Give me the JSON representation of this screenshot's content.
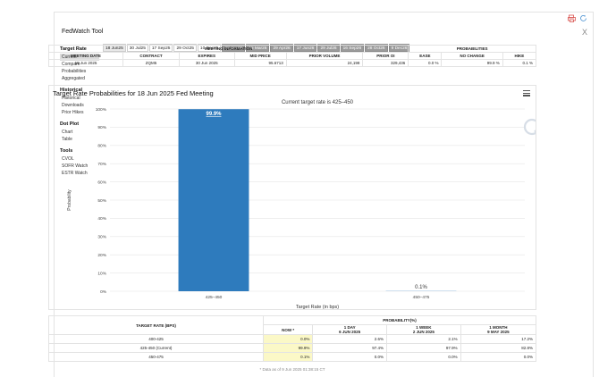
{
  "app": {
    "title": "FedWatch Tool"
  },
  "sidebar": {
    "sections": [
      {
        "heading": "Target Rate",
        "items": [
          "Current",
          "Compare",
          "Probabilities",
          "Aggregated"
        ]
      },
      {
        "heading": "Historical",
        "items": [
          "Historical",
          "Downloads",
          "Prior Hikes"
        ]
      },
      {
        "heading": "Dot Plot",
        "items": [
          "Chart",
          "Table"
        ]
      },
      {
        "heading": "Tools",
        "items": [
          "CVOL",
          "SOFR Watch",
          "ESTR Watch"
        ]
      }
    ]
  },
  "tabs": [
    {
      "label": "18 Jun25",
      "state": "active"
    },
    {
      "label": "30 Jul25",
      "state": "normal"
    },
    {
      "label": "17 Sep25",
      "state": "normal"
    },
    {
      "label": "29 Oct25",
      "state": "normal"
    },
    {
      "label": "10 Dec25",
      "state": "normal"
    },
    {
      "label": "28 Jan26",
      "state": "gray"
    },
    {
      "label": "18 Mar26",
      "state": "gray"
    },
    {
      "label": "29 Apr26",
      "state": "gray"
    },
    {
      "label": "17 Jun26",
      "state": "gray"
    },
    {
      "label": "29 Jul26",
      "state": "gray"
    },
    {
      "label": "16 Sep26",
      "state": "gray"
    },
    {
      "label": "28 Oct26",
      "state": "gray"
    },
    {
      "label": "9 Dec26",
      "state": "gray"
    }
  ],
  "meeting_info": {
    "group_label": "MEETING INFORMATION",
    "prob_group_label": "PROBABILITIES",
    "headers": [
      "MEETING DATE",
      "CONTRACT",
      "EXPIRES",
      "MID PRICE",
      "PRIOR VOLUME",
      "PRIOR OI",
      "EASE",
      "NO CHANGE",
      "HIKE"
    ],
    "row": [
      "18 Jun 2025",
      "ZQM5",
      "30 Jun 2025",
      "95.6713",
      "24,198",
      "329,436",
      "0.0 %",
      "99.9 %",
      "0.1 %"
    ]
  },
  "chart_data": {
    "type": "bar",
    "title": "Target Rate Probabilities for 18 Jun 2025 Fed Meeting",
    "subtitle": "Current target rate is 425–450",
    "xlabel": "Target Rate (in bps)",
    "ylabel": "Probability",
    "categories": [
      "425–450",
      "450–475"
    ],
    "values": [
      99.9,
      0.1
    ],
    "data_labels": [
      "99.9%",
      "0.1%"
    ],
    "yticks": [
      "0%",
      "10%",
      "20%",
      "30%",
      "40%",
      "50%",
      "60%",
      "70%",
      "80%",
      "90%",
      "100%"
    ],
    "ylim": [
      0,
      100
    ],
    "bar_color": "#2e7bbd",
    "grid": true
  },
  "prob_table": {
    "header_rate": "TARGET RATE (BPS)",
    "header_group": "PROBABILITY(%)",
    "columns": [
      {
        "top": "NOW *",
        "sub": ""
      },
      {
        "top": "1 DAY",
        "sub": "6 JUN 2025"
      },
      {
        "top": "1 WEEK",
        "sub": "2 JUN 2025"
      },
      {
        "top": "1 MONTH",
        "sub": "9 MAY 2025"
      }
    ],
    "rows": [
      {
        "rate": "400-425",
        "values": [
          "0.0%",
          "2.6%",
          "2.1%",
          "17.2%"
        ]
      },
      {
        "rate": "425-450 (Current)",
        "values": [
          "99.9%",
          "97.4%",
          "97.9%",
          "82.8%"
        ]
      },
      {
        "rate": "450-475",
        "values": [
          "0.1%",
          "0.0%",
          "0.0%",
          "0.0%"
        ]
      }
    ]
  },
  "footnote": "* Data as of 9 Jun 2025 01:38:15 CT",
  "icons": [
    "print-icon",
    "refresh-icon",
    "close-icon",
    "menu-icon",
    "watermark-q-icon"
  ]
}
